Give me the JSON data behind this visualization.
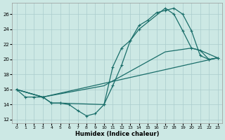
{
  "xlabel": "Humidex (Indice chaleur)",
  "bg_color": "#cce8e4",
  "grid_color": "#aacccc",
  "line_color": "#1a6e6a",
  "xlim": [
    -0.5,
    23.5
  ],
  "ylim": [
    11.5,
    27.5
  ],
  "xticks": [
    0,
    1,
    2,
    3,
    4,
    5,
    6,
    7,
    8,
    9,
    10,
    11,
    12,
    13,
    14,
    15,
    16,
    17,
    18,
    19,
    20,
    21,
    22,
    23
  ],
  "yticks": [
    12,
    14,
    16,
    18,
    20,
    22,
    24,
    26
  ],
  "curve1_x": [
    0,
    1,
    2,
    3,
    4,
    5,
    6,
    7,
    8,
    9,
    10,
    11,
    12,
    13,
    14,
    15,
    16,
    17,
    18,
    19,
    20,
    21,
    22,
    23
  ],
  "curve1_y": [
    16,
    15,
    15,
    15,
    14.2,
    14.2,
    14,
    13.2,
    12.5,
    12.8,
    14,
    16.5,
    19.2,
    22.5,
    24.5,
    25.2,
    26.2,
    26.5,
    26.8,
    26,
    23.8,
    20.5,
    20,
    20.2
  ],
  "curve2_x": [
    0,
    3,
    4,
    5,
    10,
    11,
    12,
    13,
    14,
    17,
    18,
    19,
    20,
    21,
    22,
    23
  ],
  "curve2_y": [
    16,
    15,
    14.2,
    14.2,
    14,
    19.0,
    21.5,
    22.5,
    24.0,
    26.8,
    26.0,
    23.8,
    21.5,
    21.2,
    20,
    20.2
  ],
  "line3_x": [
    0,
    3,
    10,
    17,
    20,
    21,
    23
  ],
  "line3_y": [
    16,
    15,
    16.5,
    21.0,
    21.5,
    21.2,
    20.2
  ],
  "line4_x": [
    0,
    3,
    23
  ],
  "line4_y": [
    16,
    15,
    20.2
  ]
}
